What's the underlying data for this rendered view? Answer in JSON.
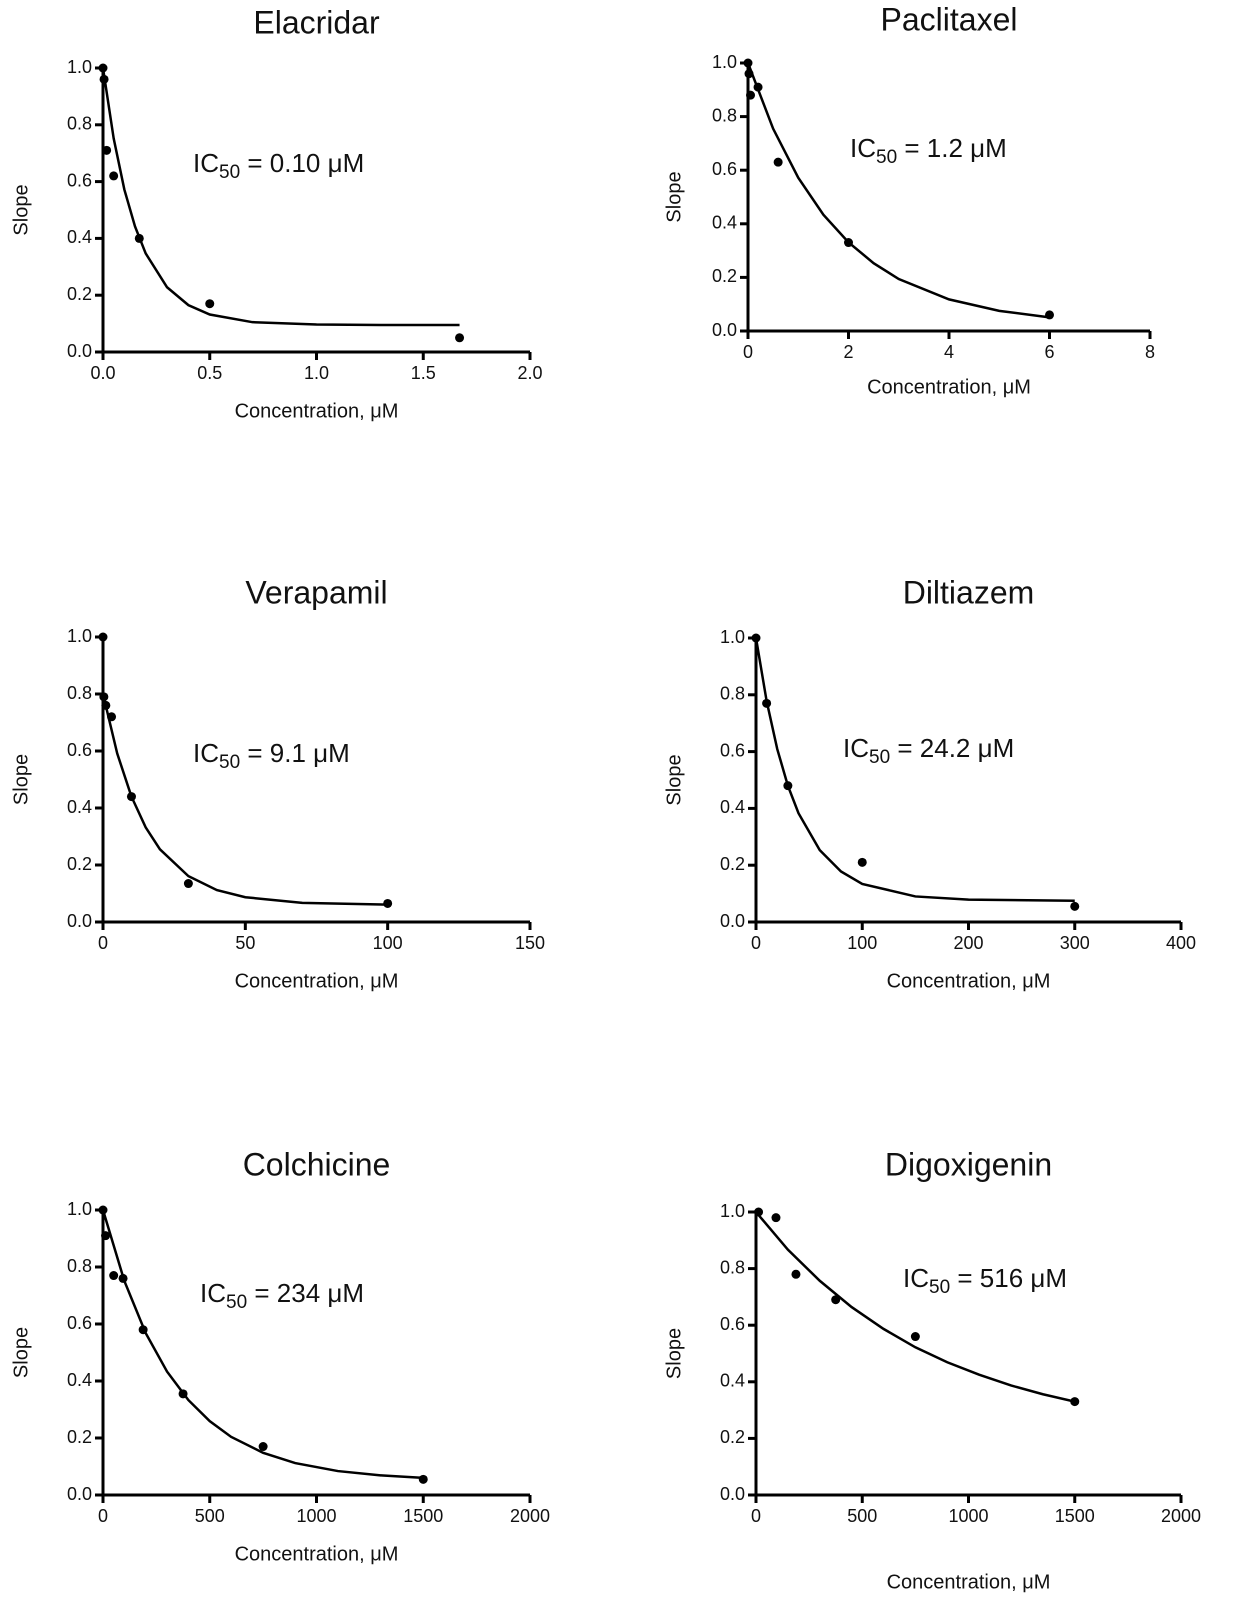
{
  "chart_data": [
    {
      "type": "scatter",
      "title": "Elacridar",
      "x_label": "Concentration, μM",
      "y_label": "Slope",
      "color": "#000000",
      "annotation": {
        "main": "IC",
        "subscript": "50",
        "rest": " = 0.10 μM"
      },
      "x": [
        0,
        0.005,
        0.017,
        0.05,
        0.17,
        0.5,
        1.67
      ],
      "values": [
        1.0,
        0.96,
        0.71,
        0.62,
        0.4,
        0.17,
        0.05
      ],
      "fit": {
        "x": [
          0,
          0.05,
          0.1,
          0.15,
          0.2,
          0.3,
          0.4,
          0.5,
          0.7,
          1.0,
          1.3,
          1.67
        ],
        "values": [
          1.0,
          0.752,
          0.572,
          0.442,
          0.347,
          0.228,
          0.165,
          0.132,
          0.105,
          0.097,
          0.095,
          0.095
        ]
      },
      "xlim": [
        0,
        2.0
      ],
      "xticks": [
        {
          "value": 0,
          "label": "0.0"
        },
        {
          "value": 0.5,
          "label": "0.5"
        },
        {
          "value": 1.0,
          "label": "1.0"
        },
        {
          "value": 1.5,
          "label": "1.5"
        },
        {
          "value": 2.0,
          "label": "2.0"
        }
      ],
      "ylim": [
        0,
        1.0
      ],
      "yticks": [
        {
          "value": 0,
          "label": "0.0"
        },
        {
          "value": 0.2,
          "label": "0.2"
        },
        {
          "value": 0.4,
          "label": "0.4"
        },
        {
          "value": 0.6,
          "label": "0.6"
        },
        {
          "value": 0.8,
          "label": "0.8"
        },
        {
          "value": 1.0,
          "label": "1.0"
        }
      ]
    },
    {
      "type": "scatter",
      "title": "Paclitaxel",
      "x_label": "Concentration, μM",
      "y_label": "Slope",
      "color": "#000000",
      "annotation": {
        "main": "IC",
        "subscript": "50",
        "rest": " = 1.2 μM"
      },
      "x": [
        0,
        0.02,
        0.05,
        0.2,
        0.6,
        2,
        6
      ],
      "values": [
        1.0,
        0.96,
        0.88,
        0.91,
        0.63,
        0.33,
        0.06
      ],
      "fit": {
        "x": [
          0,
          0.5,
          1,
          1.5,
          2,
          2.5,
          3,
          4,
          5,
          6
        ],
        "values": [
          1.0,
          0.755,
          0.572,
          0.434,
          0.331,
          0.253,
          0.194,
          0.118,
          0.075,
          0.051
        ]
      },
      "xlim": [
        0,
        8
      ],
      "xticks": [
        0,
        2,
        4,
        6,
        8
      ],
      "ylim": [
        0,
        1.0
      ],
      "yticks": [
        {
          "value": 0,
          "label": "0.0"
        },
        {
          "value": 0.2,
          "label": "0.2"
        },
        {
          "value": 0.4,
          "label": "0.4"
        },
        {
          "value": 0.6,
          "label": "0.6"
        },
        {
          "value": 0.8,
          "label": "0.8"
        },
        {
          "value": 1.0,
          "label": "1.0"
        }
      ]
    },
    {
      "type": "scatter",
      "title": "Verapamil",
      "x_label": "Concentration, μM",
      "y_label": "Slope",
      "color": "#000000",
      "annotation": {
        "main": "IC",
        "subscript": "50",
        "rest": " = 9.1 μM"
      },
      "x": [
        0,
        0.3,
        1,
        3,
        10,
        30,
        100
      ],
      "values": [
        1.0,
        0.79,
        0.76,
        0.72,
        0.44,
        0.135,
        0.065
      ],
      "fit": {
        "x": [
          0,
          5,
          10,
          15,
          20,
          30,
          40,
          50,
          70,
          100
        ],
        "values": [
          0.8,
          0.591,
          0.44,
          0.332,
          0.255,
          0.161,
          0.112,
          0.087,
          0.067,
          0.061
        ]
      },
      "xlim": [
        0,
        150
      ],
      "xticks": [
        0,
        50,
        100,
        150
      ],
      "ylim": [
        0,
        1.0
      ],
      "yticks": [
        {
          "value": 0,
          "label": "0.0"
        },
        {
          "value": 0.2,
          "label": "0.2"
        },
        {
          "value": 0.4,
          "label": "0.4"
        },
        {
          "value": 0.6,
          "label": "0.6"
        },
        {
          "value": 0.8,
          "label": "0.8"
        },
        {
          "value": 1.0,
          "label": "1.0"
        }
      ]
    },
    {
      "type": "scatter",
      "title": "Diltiazem",
      "x_label": "Concentration, μM",
      "y_label": "Slope",
      "color": "#000000",
      "annotation": {
        "main": "IC",
        "subscript": "50",
        "rest": " = 24.2 μM"
      },
      "x": [
        0,
        10,
        30,
        100,
        300
      ],
      "values": [
        1.0,
        0.77,
        0.48,
        0.21,
        0.055
      ],
      "fit": {
        "x": [
          0,
          10,
          20,
          30,
          40,
          60,
          80,
          100,
          150,
          200,
          300
        ],
        "values": [
          1.0,
          0.778,
          0.609,
          0.48,
          0.383,
          0.253,
          0.178,
          0.134,
          0.09,
          0.079,
          0.075
        ]
      },
      "xlim": [
        0,
        400
      ],
      "xticks": [
        0,
        100,
        200,
        300,
        400
      ],
      "ylim": [
        0,
        1.0
      ],
      "yticks": [
        {
          "value": 0,
          "label": "0.0"
        },
        {
          "value": 0.2,
          "label": "0.2"
        },
        {
          "value": 0.4,
          "label": "0.4"
        },
        {
          "value": 0.6,
          "label": "0.6"
        },
        {
          "value": 0.8,
          "label": "0.8"
        },
        {
          "value": 1.0,
          "label": "1.0"
        }
      ]
    },
    {
      "type": "scatter",
      "title": "Colchicine",
      "x_label": "Concentration, μM",
      "y_label": "Slope",
      "color": "#000000",
      "annotation": {
        "main": "IC",
        "subscript": "50",
        "rest": " = 234 μM"
      },
      "x": [
        0,
        12,
        50,
        94,
        188,
        375,
        750,
        1500
      ],
      "values": [
        1.0,
        0.91,
        0.77,
        0.76,
        0.58,
        0.355,
        0.17,
        0.055
      ],
      "fit": {
        "x": [
          0,
          100,
          200,
          300,
          400,
          500,
          600,
          750,
          900,
          1100,
          1300,
          1500
        ],
        "values": [
          1.0,
          0.751,
          0.568,
          0.433,
          0.333,
          0.259,
          0.204,
          0.148,
          0.112,
          0.084,
          0.069,
          0.06
        ]
      },
      "xlim": [
        0,
        2000
      ],
      "xticks": [
        0,
        500,
        1000,
        1500,
        2000
      ],
      "ylim": [
        0,
        1.0
      ],
      "yticks": [
        {
          "value": 0,
          "label": "0.0"
        },
        {
          "value": 0.2,
          "label": "0.2"
        },
        {
          "value": 0.4,
          "label": "0.4"
        },
        {
          "value": 0.6,
          "label": "0.6"
        },
        {
          "value": 0.8,
          "label": "0.8"
        },
        {
          "value": 1.0,
          "label": "1.0"
        }
      ]
    },
    {
      "type": "scatter",
      "title": "Digoxigenin",
      "x_label": "Concentration, μM",
      "y_label": "Slope",
      "color": "#000000",
      "annotation": {
        "main": "IC",
        "subscript": "50",
        "rest": " = 516 μM"
      },
      "x": [
        12,
        94,
        188,
        375,
        750,
        1500
      ],
      "values": [
        1.0,
        0.98,
        0.78,
        0.69,
        0.56,
        0.33
      ],
      "fit": {
        "x": [
          0,
          150,
          300,
          450,
          600,
          750,
          900,
          1050,
          1200,
          1350,
          1500
        ],
        "values": [
          1.0,
          0.867,
          0.757,
          0.664,
          0.587,
          0.522,
          0.469,
          0.425,
          0.387,
          0.356,
          0.33
        ]
      },
      "xlim": [
        0,
        2000
      ],
      "xticks": [
        0,
        500,
        1000,
        1500,
        2000
      ],
      "ylim": [
        0,
        1.0
      ],
      "yticks": [
        {
          "value": 0,
          "label": "0.0"
        },
        {
          "value": 0.2,
          "label": "0.2"
        },
        {
          "value": 0.4,
          "label": "0.4"
        },
        {
          "value": 0.6,
          "label": "0.6"
        },
        {
          "value": 0.8,
          "label": "0.8"
        },
        {
          "value": 1.0,
          "label": "1.0"
        }
      ]
    }
  ]
}
